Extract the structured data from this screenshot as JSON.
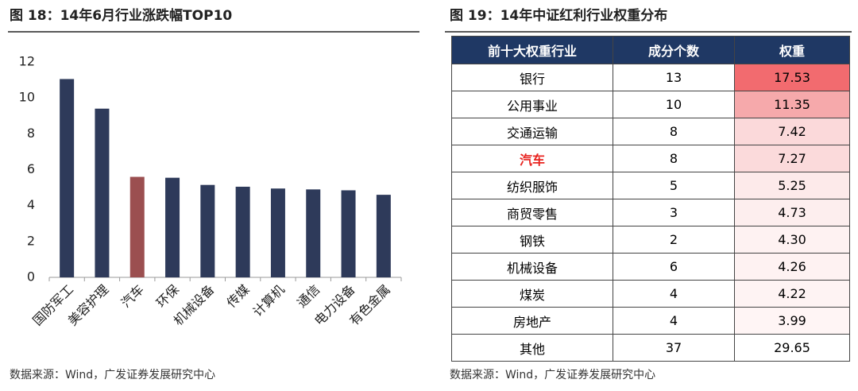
{
  "chart_data": {
    "type": "bar",
    "title": "图 18：14年6月行业涨跌幅TOP10",
    "categories": [
      "国防军工",
      "美容护理",
      "汽车",
      "环保",
      "机械设备",
      "传媒",
      "计算机",
      "通信",
      "电力设备",
      "有色金属"
    ],
    "values": [
      11.05,
      9.4,
      5.6,
      5.55,
      5.15,
      5.05,
      4.95,
      4.9,
      4.85,
      4.6
    ],
    "colors": [
      "#2e3a5a",
      "#2e3a5a",
      "#9b4f50",
      "#2e3a5a",
      "#2e3a5a",
      "#2e3a5a",
      "#2e3a5a",
      "#2e3a5a",
      "#2e3a5a",
      "#2e3a5a"
    ],
    "ylim": [
      0,
      12
    ],
    "yticks": [
      0,
      2,
      4,
      6,
      8,
      10,
      12
    ],
    "grid": false,
    "source": "数据来源：Wind，广发证券发展研究中心"
  },
  "table": {
    "title": "图 19：14年中证红利行业权重分布",
    "header": [
      "前十大权重行业",
      "成分个数",
      "权重"
    ],
    "rows": [
      [
        "银行",
        "13",
        "17.53"
      ],
      [
        "公用事业",
        "10",
        "11.35"
      ],
      [
        "交通运输",
        "8",
        "7.42"
      ],
      [
        "汽车",
        "8",
        "7.27"
      ],
      [
        "纺织服饰",
        "5",
        "5.25"
      ],
      [
        "商贸零售",
        "3",
        "4.73"
      ],
      [
        "钢铁",
        "2",
        "4.30"
      ],
      [
        "机械设备",
        "6",
        "4.26"
      ],
      [
        "煤炭",
        "4",
        "4.22"
      ],
      [
        "房地产",
        "4",
        "3.99"
      ],
      [
        "其他",
        "37",
        "29.65"
      ]
    ],
    "weight_colors": [
      "#f26b6f",
      "#f6a9ab",
      "#fbd9da",
      "#fbdadb",
      "#fdeaea",
      "#fdeeee",
      "#fef2f2",
      "#fef2f2",
      "#fef3f3",
      "#fff5f5",
      "#ffffff"
    ],
    "highlight_row": 3,
    "highlight_color": "#e8231f",
    "source": "数据来源：Wind，广发证券发展研究中心"
  }
}
